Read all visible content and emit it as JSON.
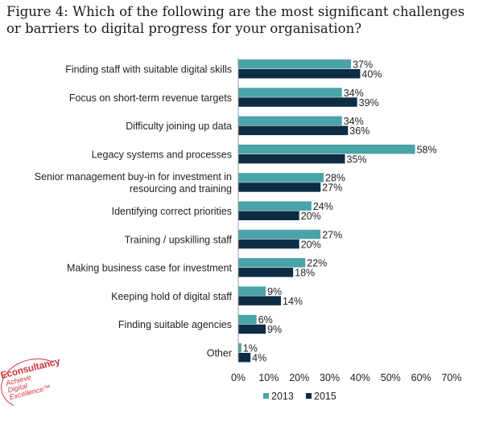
{
  "title": "Figure 4: Which of the following are the most significant challenges or barriers to digital progress for your organisation?",
  "chart_data": {
    "type": "bar",
    "orientation": "horizontal",
    "categories": [
      [
        "Finding staff with suitable digital skills"
      ],
      [
        "Focus on short-term revenue targets"
      ],
      [
        "Difficulty joining up data"
      ],
      [
        "Legacy systems and processes"
      ],
      [
        "Senior management buy-in for investment in",
        "resourcing and training"
      ],
      [
        "Identifying correct priorities"
      ],
      [
        "Training / upskilling staff"
      ],
      [
        "Making business case for investment"
      ],
      [
        "Keeping hold of digital staff"
      ],
      [
        "Finding suitable agencies"
      ],
      [
        "Other"
      ]
    ],
    "series": [
      {
        "name": "2013",
        "color": "#4aa3a8",
        "values": [
          37,
          34,
          34,
          58,
          28,
          24,
          27,
          22,
          9,
          6,
          1
        ]
      },
      {
        "name": "2015",
        "color": "#0e2d45",
        "values": [
          40,
          39,
          36,
          35,
          27,
          20,
          20,
          18,
          14,
          9,
          4
        ]
      }
    ],
    "xlim": [
      0,
      70
    ],
    "xticks": [
      "0%",
      "10%",
      "20%",
      "30%",
      "40%",
      "50%",
      "60%",
      "70%"
    ],
    "legend_position": "bottom",
    "grid": false
  },
  "logo": {
    "brand": "Econsultancy",
    "tagline": [
      "Achieve",
      "Digital",
      "Excellence™"
    ]
  }
}
